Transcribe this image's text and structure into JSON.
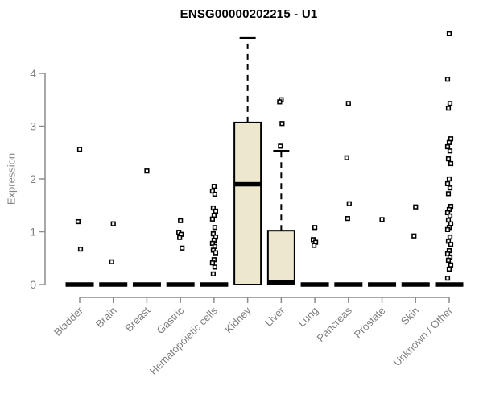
{
  "title": "ENSG00000202215 - U1",
  "chart_data": {
    "type": "boxplot",
    "title": "ENSG00000202215 - U1",
    "xlabel": "",
    "ylabel": "Expression",
    "y_ticks": [
      0,
      1,
      2,
      3,
      4
    ],
    "ylim": [
      0,
      4.8
    ],
    "grid": false,
    "legend": null,
    "categories": [
      "Bladder",
      "Brain",
      "Breast",
      "Gastric",
      "Hematopoietic cells",
      "Kidney",
      "Liver",
      "Lung",
      "Pancreas",
      "Prostate",
      "Skin",
      "Unknown / Other"
    ],
    "series": [
      {
        "category": "Bladder",
        "q1": 0,
        "median": 0,
        "q3": 0,
        "whisker_low": 0,
        "whisker_high": 0,
        "points": [
          2.56,
          1.19,
          0.67
        ]
      },
      {
        "category": "Brain",
        "q1": 0,
        "median": 0,
        "q3": 0,
        "whisker_low": 0,
        "whisker_high": 0,
        "points": [
          1.15,
          0.43
        ]
      },
      {
        "category": "Breast",
        "q1": 0,
        "median": 0,
        "q3": 0,
        "whisker_low": 0,
        "whisker_high": 0,
        "points": [
          2.15
        ]
      },
      {
        "category": "Gastric",
        "q1": 0,
        "median": 0,
        "q3": 0,
        "whisker_low": 0,
        "whisker_high": 0,
        "points": [
          1.21,
          0.99,
          0.95,
          0.89,
          0.69
        ]
      },
      {
        "category": "Hematopoietic cells",
        "q1": 0,
        "median": 0,
        "q3": 0,
        "whisker_low": 0,
        "whisker_high": 0,
        "points": [
          1.86,
          1.77,
          1.71,
          1.45,
          1.39,
          1.31,
          1.24,
          1.08,
          0.96,
          0.9,
          0.84,
          0.78,
          0.72,
          0.65,
          0.6,
          0.47,
          0.41,
          0.33,
          0.2
        ]
      },
      {
        "category": "Kidney",
        "q1": 0,
        "median": 1.9,
        "q3": 3.07,
        "whisker_low": 0,
        "whisker_high": 4.67,
        "points": []
      },
      {
        "category": "Liver",
        "q1": 0,
        "median": 0.03,
        "q3": 1.02,
        "whisker_low": 0,
        "whisker_high": 2.53,
        "points": [
          3.5,
          3.46,
          3.05,
          2.62
        ]
      },
      {
        "category": "Lung",
        "q1": 0,
        "median": 0,
        "q3": 0,
        "whisker_low": 0,
        "whisker_high": 0,
        "points": [
          1.08,
          0.85,
          0.8,
          0.74
        ]
      },
      {
        "category": "Pancreas",
        "q1": 0,
        "median": 0,
        "q3": 0,
        "whisker_low": 0,
        "whisker_high": 0,
        "points": [
          3.43,
          2.4,
          1.53,
          1.25
        ]
      },
      {
        "category": "Prostate",
        "q1": 0,
        "median": 0,
        "q3": 0,
        "whisker_low": 0,
        "whisker_high": 0,
        "points": [
          1.23
        ]
      },
      {
        "category": "Skin",
        "q1": 0,
        "median": 0,
        "q3": 0,
        "whisker_low": 0,
        "whisker_high": 0,
        "points": [
          1.47,
          0.92
        ]
      },
      {
        "category": "Unknown / Other",
        "q1": 0,
        "median": 0,
        "q3": 0,
        "whisker_low": 0,
        "whisker_high": 0,
        "points": [
          4.75,
          3.89,
          3.43,
          3.34,
          2.76,
          2.69,
          2.61,
          2.53,
          2.38,
          2.29,
          2.0,
          1.91,
          1.83,
          1.72,
          1.48,
          1.42,
          1.36,
          1.3,
          1.22,
          1.15,
          1.08,
          1.04,
          0.9,
          0.82,
          0.76,
          0.64,
          0.58,
          0.52,
          0.46,
          0.37,
          0.29,
          0.12
        ]
      }
    ],
    "colors": {
      "box_fill": "#ece7cd",
      "box_border": "#000000",
      "median": "#000000",
      "whisker": "#000000",
      "outlier": "#000000",
      "axis": "#8c8c8c",
      "tick_label": "#808080",
      "title": "#000000",
      "background": "#ffffff"
    }
  }
}
